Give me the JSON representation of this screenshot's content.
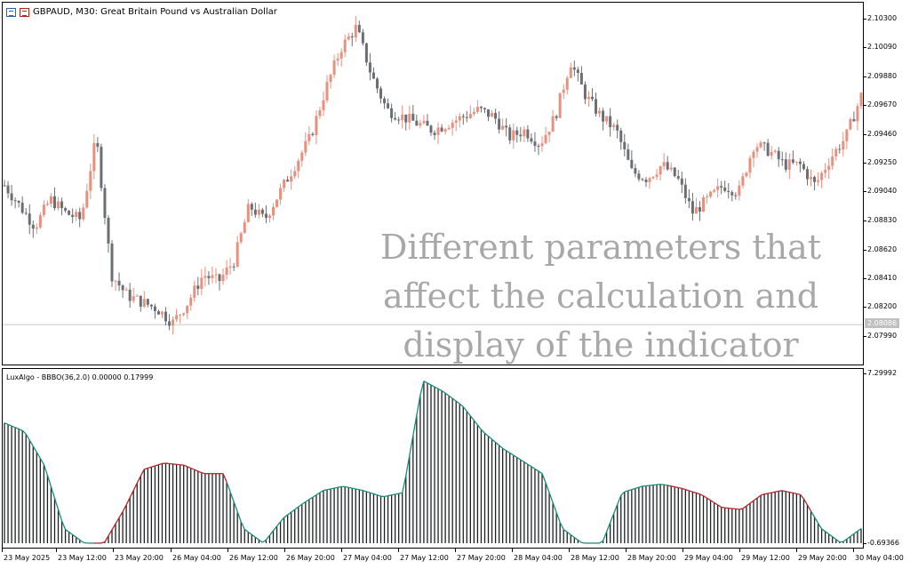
{
  "window": {
    "symbol_line": "GBPAUD, M30:  Great Britain Pound vs Australian Dollar"
  },
  "indicator": {
    "title": "LuxAlgo - BBBO(36,2.0) 0.00000 0.17999",
    "axis_top": "7.29992",
    "axis_bottom": "-0.69366"
  },
  "overlay_text": [
    "Different parameters that",
    "affect the calculation and",
    "display of the indicator"
  ],
  "price_axis": {
    "ticks": [
      "2.10300",
      "2.10090",
      "2.09880",
      "2.09670",
      "2.09460",
      "2.09250",
      "2.09040",
      "2.08830",
      "2.08620",
      "2.08410",
      "2.08200",
      "2.07990"
    ],
    "current_price": "2.08086"
  },
  "time_axis": {
    "labels": [
      "23 May 2025",
      "23 May 12:00",
      "23 May 20:00",
      "26 May 04:00",
      "26 May 12:00",
      "26 May 20:00",
      "27 May 04:00",
      "27 May 12:00",
      "27 May 20:00",
      "28 May 04:00",
      "28 May 12:00",
      "28 May 20:00",
      "29 May 04:00",
      "29 May 12:00",
      "29 May 20:00",
      "30 May 04:00"
    ]
  },
  "colors": {
    "bull_candle": "#e8907f",
    "bear_candle": "#6b6e72",
    "hist_green": "#1a8a7a",
    "hist_red": "#b3262b",
    "hist_bar": "#1c2022",
    "current_line": "#c8c8c8"
  },
  "chart_data": {
    "type": "line",
    "price_close_approx": [
      2.091,
      2.0895,
      2.088,
      2.09,
      2.089,
      2.0885,
      2.0945,
      2.0845,
      2.083,
      2.0825,
      2.082,
      2.081,
      2.0825,
      2.0845,
      2.084,
      2.0855,
      2.0895,
      2.0885,
      2.0905,
      2.0925,
      2.0945,
      2.098,
      2.101,
      2.1025,
      2.099,
      2.0965,
      2.096,
      2.0955,
      2.095,
      2.0955,
      2.096,
      2.0965,
      2.096,
      2.0945,
      2.095,
      2.094,
      2.096,
      2.1,
      2.0975,
      2.096,
      2.095,
      2.092,
      2.0915,
      2.0925,
      2.0915,
      2.089,
      2.09,
      2.091,
      2.0905,
      2.094,
      2.0935,
      2.0925,
      2.0925,
      2.091,
      2.093,
      2.0945,
      2.0975
    ],
    "indicator_series": [
      {
        "name": "LuxAlgo - BBBO",
        "values": [
          5.0,
          4.6,
          3.0,
          0,
          -0.69,
          -0.69,
          0.9,
          2.8,
          3.1,
          3.0,
          2.6,
          2.6,
          0,
          -0.69,
          0.5,
          1.2,
          1.8,
          2.0,
          1.8,
          1.5,
          1.7,
          7.0,
          6.5,
          5.8,
          4.6,
          3.8,
          3.2,
          2.6,
          0,
          -0.69,
          -0.69,
          1.7,
          2.0,
          2.1,
          1.9,
          1.6,
          1.0,
          0.9,
          1.6,
          1.8,
          1.6,
          0,
          -0.69,
          0
        ]
      }
    ]
  }
}
